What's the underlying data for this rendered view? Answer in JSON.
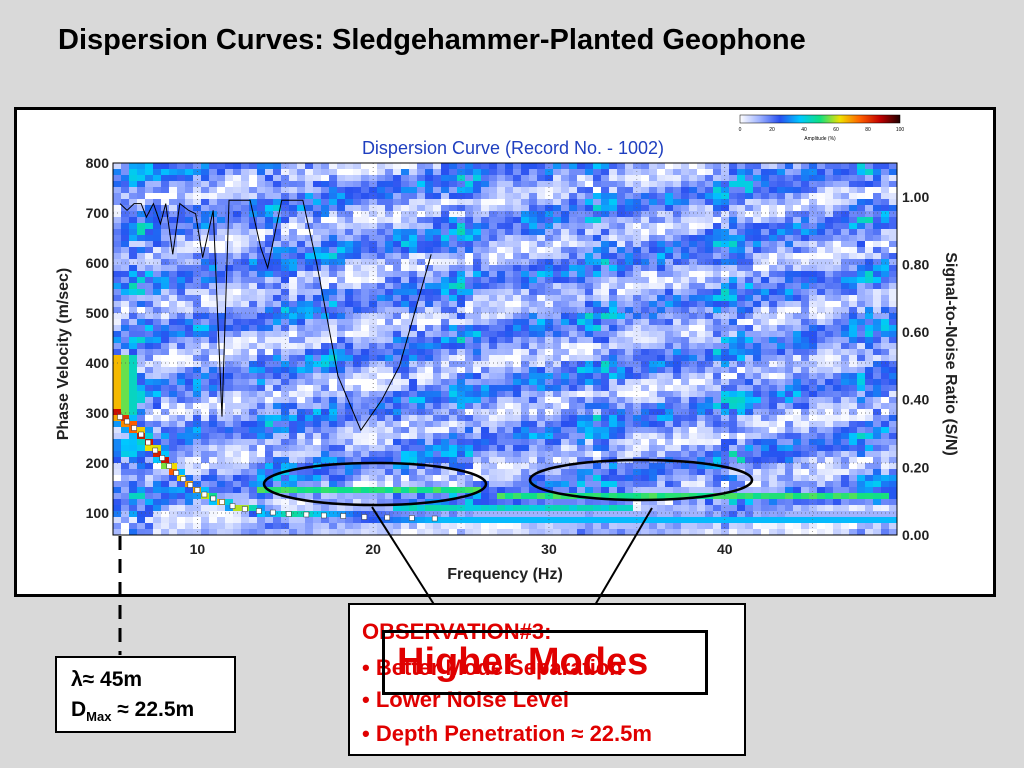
{
  "slide": {
    "title": "Dispersion Curves: Sledgehammer-Planted Geophone"
  },
  "chart_data": {
    "type": "heatmap",
    "title": "Dispersion Curve (Record No. - 1002)",
    "xlabel": "Frequency (Hz)",
    "ylabel": "Phase Velocity (m/sec)",
    "y2label": "Signal-to-Noise Ratio (S/N)",
    "xlim": [
      5.2,
      49.8
    ],
    "ylim": [
      56,
      800
    ],
    "y2lim": [
      0,
      1.1
    ],
    "x_ticks": [
      "10",
      "20",
      "30",
      "40"
    ],
    "x_tick_values": [
      10,
      20,
      30,
      40
    ],
    "y_ticks": [
      "100",
      "200",
      "300",
      "400",
      "500",
      "600",
      "700",
      "800"
    ],
    "y_tick_values": [
      100,
      200,
      300,
      400,
      500,
      600,
      700,
      800
    ],
    "y2_ticks": [
      "0.00",
      "0.20",
      "0.40",
      "0.60",
      "0.80",
      "1.00"
    ],
    "y2_tick_values": [
      0,
      0.2,
      0.4,
      0.6,
      0.8,
      1.0
    ],
    "colorbar": {
      "label": "Amplitude (%)",
      "ticks": [
        "0",
        "20",
        "40",
        "60",
        "80",
        "100"
      ],
      "colors": [
        "#ffffff",
        "#9cb0ff",
        "#2850f0",
        "#00c8ff",
        "#10e080",
        "#f0e000",
        "#ff6000",
        "#c00000",
        "#200000"
      ]
    },
    "grid": true,
    "picked_dispersion_curve": {
      "x": [
        5.6,
        6.0,
        6.4,
        6.8,
        7.2,
        7.6,
        8.0,
        8.4,
        8.8,
        9.2,
        9.6,
        10.0,
        10.4,
        10.9,
        11.4,
        12.0,
        12.7,
        13.5,
        14.3,
        15.2,
        16.2,
        17.2,
        18.3,
        19.5,
        20.8,
        22.2,
        23.5
      ],
      "y": [
        292,
        283,
        270,
        257,
        241,
        225,
        210,
        194,
        180,
        168,
        156,
        146,
        137,
        129,
        122,
        114,
        108,
        104,
        101,
        98,
        97,
        95,
        94,
        92,
        91,
        90,
        89
      ]
    },
    "snr_curve": {
      "x": [
        5.6,
        6.0,
        6.4,
        6.8,
        7.1,
        7.5,
        7.9,
        8.2,
        8.6,
        9.0,
        9.5,
        9.9,
        10.3,
        10.9,
        11.4,
        11.8,
        12.4,
        13.0,
        13.6,
        14.0,
        14.8,
        15.4,
        16.0,
        16.8,
        18.0,
        19.3,
        20.5,
        21.5,
        23.3
      ],
      "y": [
        0.98,
        0.96,
        0.98,
        0.98,
        0.94,
        0.98,
        0.92,
        0.98,
        0.83,
        0.98,
        0.96,
        0.95,
        0.82,
        0.96,
        0.35,
        0.99,
        0.99,
        0.99,
        0.85,
        0.79,
        0.99,
        0.99,
        0.99,
        0.8,
        0.47,
        0.31,
        0.4,
        0.5,
        0.83
      ]
    },
    "higher_mode_bands": [
      {
        "x": [
          13.5,
          26.0
        ],
        "y": 145
      },
      {
        "x": [
          27.0,
          49.5
        ],
        "y": 135
      },
      {
        "x": [
          21.0,
          35.0
        ],
        "y": 113
      }
    ]
  },
  "observation": {
    "heading": "OBSERVATION#3:",
    "bullets": [
      "• Better Mode Separation",
      "• Lower Noise Level",
      "• Depth Penetration ≈ 22.5m"
    ]
  },
  "higher_modes_label": "Higher Modes",
  "wavelength": {
    "lambda_line": "λ≈ 45m",
    "dmax_prefix": "D",
    "dmax_sub": "Max",
    "dmax_value": " ≈ 22.5m"
  }
}
